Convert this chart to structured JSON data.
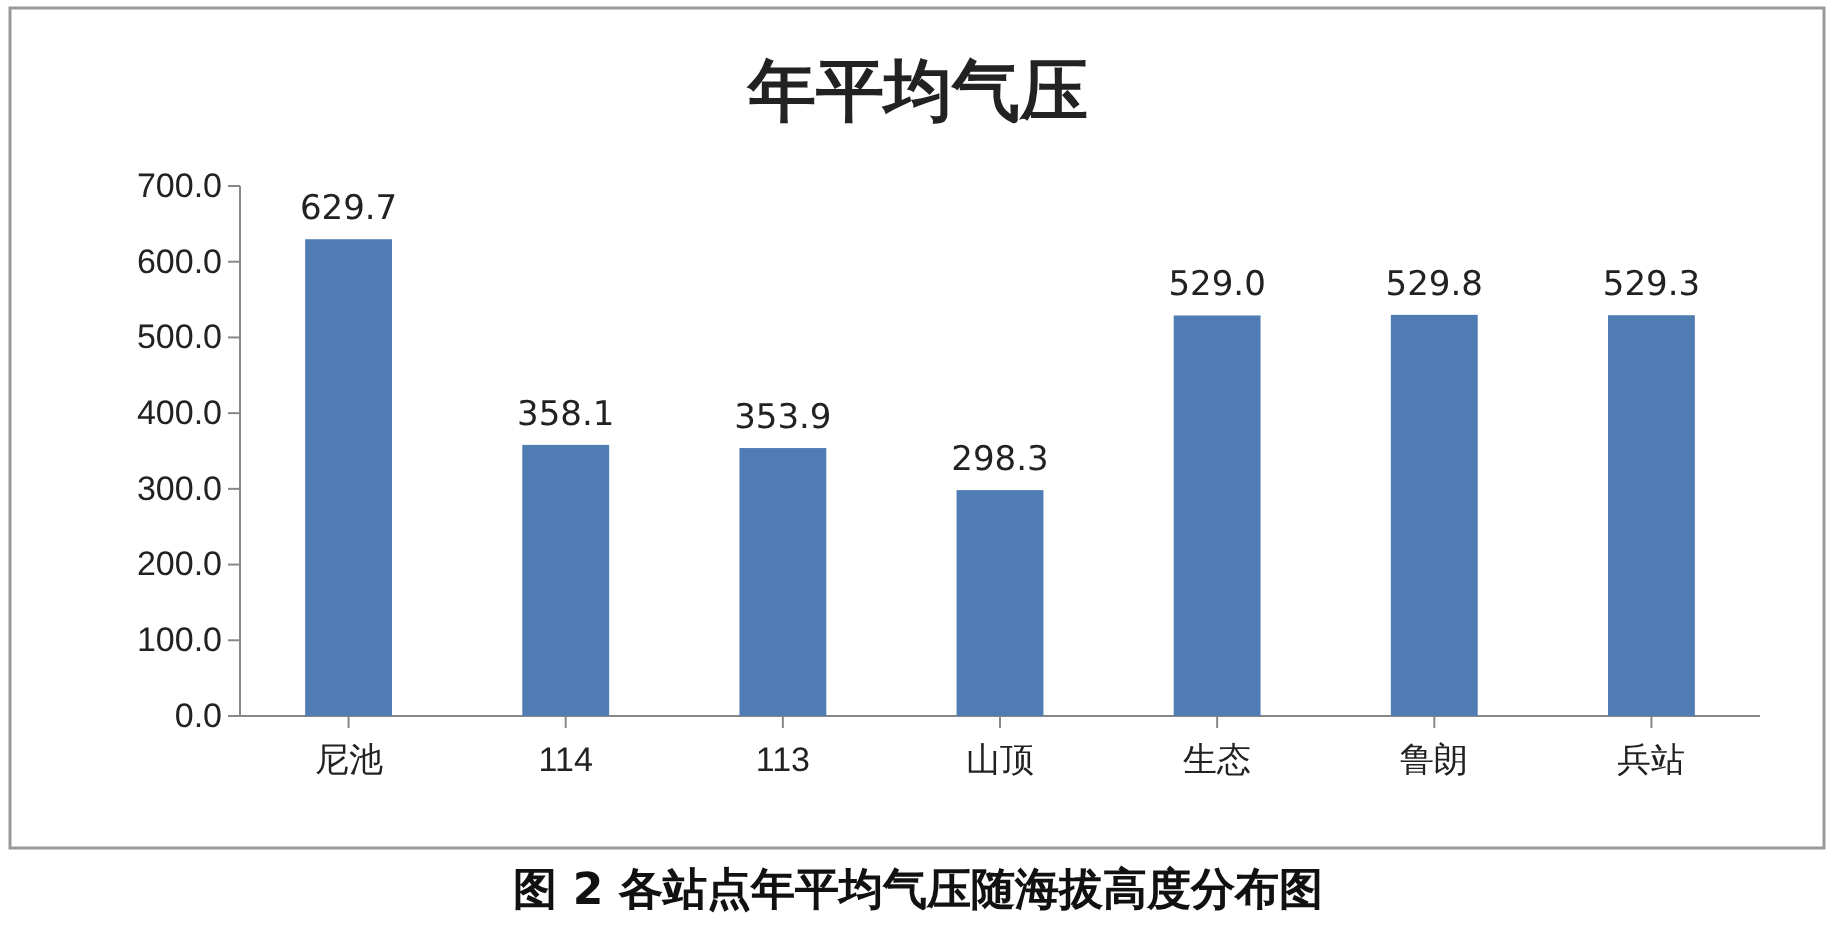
{
  "chart_data": {
    "type": "bar",
    "title": "年平均气压",
    "categories": [
      "尼池",
      "114",
      "113",
      "山顶",
      "生态",
      "鲁朗",
      "兵站"
    ],
    "values": [
      629.7,
      358.1,
      353.9,
      298.3,
      529.0,
      529.8,
      529.3
    ],
    "color": "#4f7db3",
    "ylim": [
      0,
      700
    ],
    "yticks": [
      {
        "value": 0,
        "label": "0.0"
      },
      {
        "value": 100,
        "label": "100.0"
      },
      {
        "value": 200,
        "label": "200.0"
      },
      {
        "value": 300,
        "label": "300.0"
      },
      {
        "value": 400,
        "label": "400.0"
      },
      {
        "value": 500,
        "label": "500.0"
      },
      {
        "value": 600,
        "label": "600.0"
      },
      {
        "value": 700,
        "label": "700.0"
      }
    ],
    "value_labels": [
      "629.7",
      "358.1",
      "353.9",
      "298.3",
      "529.0",
      "529.8",
      "529.3"
    ],
    "annotations": [
      "图 2 各站点年平均气压随海拔高度分布图"
    ]
  }
}
